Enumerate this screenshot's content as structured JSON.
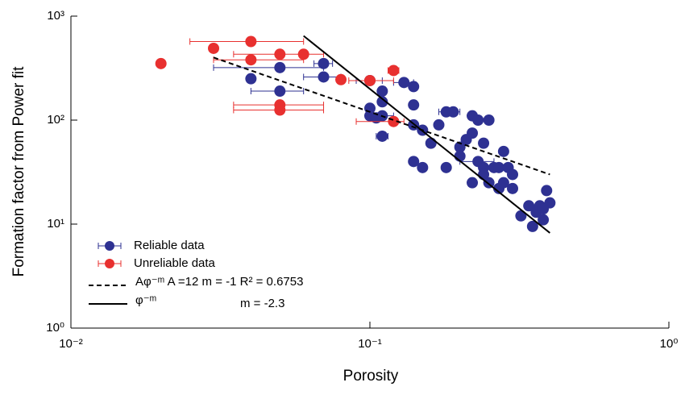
{
  "chart_data": {
    "type": "scatter",
    "x_label": "Porosity",
    "y_label": "Formation factor from Power fit",
    "xlim": [
      0.01,
      1
    ],
    "ylim": [
      1,
      1000
    ],
    "x_log": true,
    "y_log": true,
    "xticks": [
      {
        "value": 0.01,
        "label": "10⁻²"
      },
      {
        "value": 0.1,
        "label": "10⁻¹"
      },
      {
        "value": 1,
        "label": "10⁰"
      }
    ],
    "yticks": [
      {
        "value": 1,
        "label": "10⁰"
      },
      {
        "value": 10,
        "label": "10¹"
      },
      {
        "value": 100,
        "label": "10²"
      },
      {
        "value": 1000,
        "label": "10³"
      }
    ],
    "legend": "lower-left",
    "series": [
      {
        "name": "Reliable data",
        "color": "#2e3192",
        "x": [
          0.04,
          0.05,
          0.05,
          0.07,
          0.07,
          0.1,
          0.1,
          0.1,
          0.105,
          0.11,
          0.11,
          0.11,
          0.11,
          0.13,
          0.14,
          0.14,
          0.14,
          0.14,
          0.15,
          0.15,
          0.16,
          0.17,
          0.18,
          0.18,
          0.19,
          0.2,
          0.2,
          0.21,
          0.22,
          0.22,
          0.22,
          0.23,
          0.23,
          0.24,
          0.24,
          0.24,
          0.25,
          0.25,
          0.26,
          0.27,
          0.27,
          0.28,
          0.28,
          0.29,
          0.3,
          0.3,
          0.32,
          0.34,
          0.35,
          0.36,
          0.37,
          0.38,
          0.39,
          0.4,
          0.38
        ],
        "values": [
          250,
          320,
          190,
          350,
          260,
          240,
          130,
          110,
          105,
          190,
          150,
          110,
          70,
          230,
          210,
          140,
          90,
          40,
          35,
          80,
          60,
          90,
          120,
          35,
          120,
          55,
          45,
          65,
          110,
          75,
          25,
          100,
          40,
          60,
          35,
          30,
          100,
          25,
          35,
          35,
          22,
          50,
          25,
          35,
          30,
          22,
          12,
          15,
          9.5,
          13,
          15,
          11,
          21,
          16,
          14
        ],
        "x_error": [
          null,
          [
            0.03,
            0.07
          ],
          [
            0.04,
            0.06
          ],
          [
            0.065,
            0.075
          ],
          [
            0.06,
            0.08
          ],
          [
            0.09,
            0.11
          ],
          null,
          null,
          null,
          null,
          null,
          [
            0.1,
            0.12
          ],
          [
            0.105,
            0.115
          ],
          [
            0.12,
            0.14
          ],
          null,
          null,
          null,
          null,
          null,
          null,
          null,
          null,
          [
            0.17,
            0.2
          ],
          null,
          null,
          null,
          null,
          null,
          null,
          null,
          null,
          null,
          [
            0.2,
            0.26
          ],
          null,
          null,
          null,
          null,
          null,
          null,
          null,
          null,
          null,
          null,
          null,
          null,
          null,
          null,
          null,
          null,
          null,
          null,
          null,
          null,
          null,
          null
        ]
      },
      {
        "name": "Unreliable data",
        "color": "#e8302f",
        "x": [
          0.02,
          0.03,
          0.04,
          0.04,
          0.05,
          0.05,
          0.05,
          0.06,
          0.08,
          0.1,
          0.12,
          0.12
        ],
        "values": [
          350,
          490,
          570,
          380,
          430,
          140,
          125,
          430,
          245,
          240,
          300,
          97
        ],
        "x_error": [
          null,
          null,
          [
            0.025,
            0.06
          ],
          [
            0.03,
            0.06
          ],
          [
            0.035,
            0.07
          ],
          [
            0.035,
            0.07
          ],
          [
            0.035,
            0.07
          ],
          null,
          null,
          [
            0.085,
            0.12
          ],
          [
            0.115,
            0.125
          ],
          [
            0.09,
            0.13
          ]
        ]
      }
    ],
    "fits": [
      {
        "name": "Aφ⁻ᵐ  A =12  m = -1  R² = 0.6753",
        "style": "dashed",
        "x": [
          0.03,
          0.4
        ],
        "values": [
          400,
          30
        ]
      },
      {
        "name": "φ⁻ᵐ",
        "style": "solid",
        "x": [
          0.06,
          0.4
        ],
        "values": [
          646,
          8.23
        ]
      }
    ],
    "annotations": [
      "m = -2.3"
    ]
  }
}
